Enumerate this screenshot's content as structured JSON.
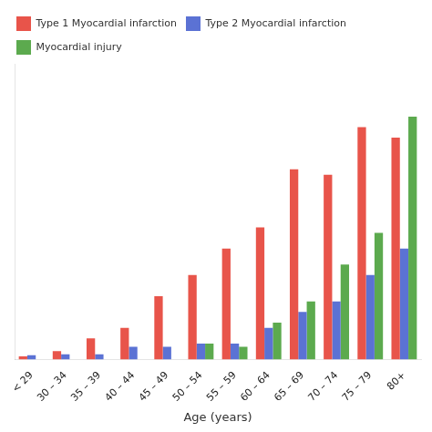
{
  "chart_data": {
    "type": "bar",
    "categories": [
      "< 29",
      "30 – 34",
      "35 – 39",
      "40 – 44",
      "45 – 49",
      "50 – 54",
      "55 – 59",
      "60 – 64",
      "65 – 69",
      "70 – 74",
      "75 – 79",
      "80+"
    ],
    "series": [
      {
        "name": "Type 1 Myocardial infarction",
        "color": "#e8544a",
        "values": [
          0.3,
          0.8,
          2.0,
          3.0,
          6.0,
          8.0,
          10.5,
          12.5,
          18.0,
          17.5,
          22.0,
          21.0
        ]
      },
      {
        "name": "Type 2 Myocardial infarction",
        "color": "#5b72d4",
        "values": [
          0.4,
          0.5,
          0.5,
          1.2,
          1.2,
          1.5,
          1.5,
          3.0,
          4.5,
          5.5,
          8.0,
          10.5
        ]
      },
      {
        "name": "Myocardial injury",
        "color": "#5caa4e",
        "values": [
          0.0,
          0.0,
          0.0,
          0.0,
          0.0,
          1.5,
          1.2,
          3.5,
          5.5,
          9.0,
          12.0,
          23.0
        ]
      }
    ],
    "xlabel": "Age (years)",
    "ylim": [
      0,
      28
    ],
    "tick_labels": "x",
    "grid": false,
    "legend": "upper left"
  }
}
